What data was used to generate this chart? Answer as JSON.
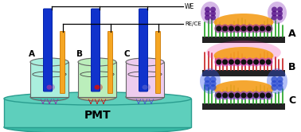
{
  "figure_width": 3.78,
  "figure_height": 1.66,
  "dpi": 100,
  "bg_color": "#ffffff",
  "pmt_color": "#5ecfbc",
  "pmt_edge": "#2a9d8f",
  "pmt_label": "PMT",
  "pmt_fontsize": 10,
  "beaker_fills": [
    "#aaeedd",
    "#bbeebb",
    "#eeccee"
  ],
  "beaker_edge": "#666666",
  "beaker_labels": [
    "A",
    "B",
    "C"
  ],
  "electrode_blue_color": "#1133cc",
  "electrode_yellow_color": "#f5a623",
  "we_label": "WE",
  "rece_label": "RE/CE",
  "spot_colors": [
    "#8833aa",
    "#cc1111",
    "#4455cc"
  ],
  "panel_labels": [
    "A",
    "B",
    "C"
  ],
  "panel_label_fontsize": 9,
  "base_color": "#222222",
  "hydrogel_color": "#f5a020",
  "grass_color_A": "#33aa33",
  "grass_color_B": "#cc3333",
  "grass_color_C": "#33aa33",
  "bead_color": "#111111",
  "flower_color_A": "#993399",
  "flower_color_B": "#cc44bb",
  "flower_color_C": "#8844cc",
  "glow_color_A": "#8833bb",
  "glow_color_B": "#ee44aa",
  "glow_color_C": "#3355ee"
}
